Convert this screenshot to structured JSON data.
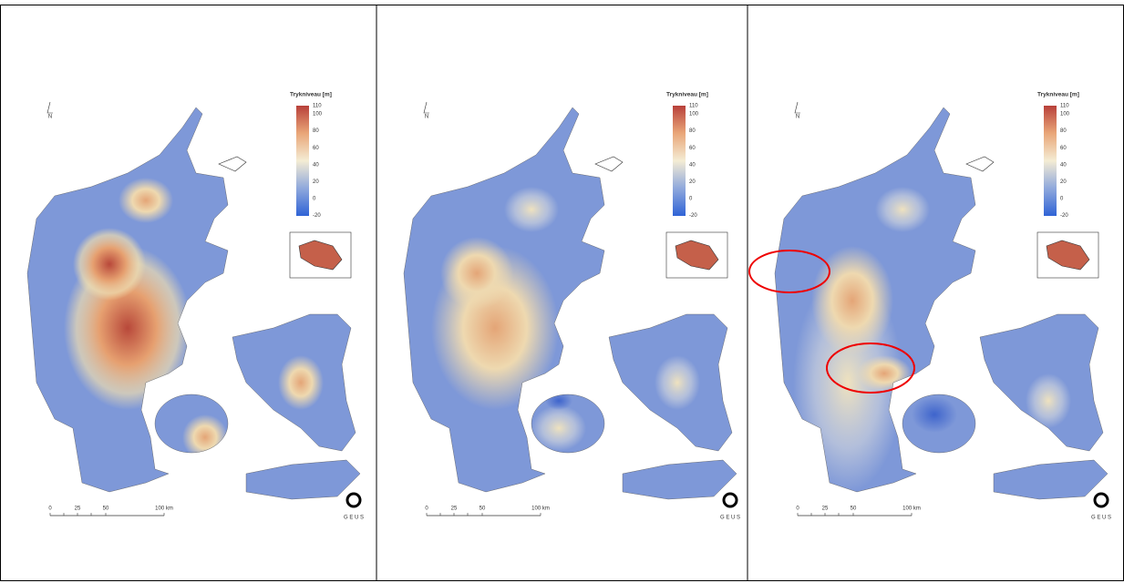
{
  "panels": [
    {
      "legend_title": "Trykniveau [m]",
      "legend_ticks": [
        110,
        100,
        80,
        60,
        40,
        20,
        0,
        -20
      ],
      "scale_labels": [
        "0",
        "25",
        "50",
        "100 km"
      ],
      "north": "N",
      "logo": "G E U S"
    },
    {
      "legend_title": "Trykniveau [m]",
      "legend_ticks": [
        110,
        100,
        80,
        60,
        40,
        20,
        0,
        -20
      ],
      "scale_labels": [
        "0",
        "25",
        "50",
        "100 km"
      ],
      "north": "N",
      "logo": "G E U S"
    },
    {
      "legend_title": "Trykniveau [m]",
      "legend_ticks": [
        110,
        100,
        80,
        60,
        40,
        20,
        0,
        -20
      ],
      "scale_labels": [
        "0",
        "25",
        "50",
        "100 km"
      ],
      "north": "N",
      "logo": "G E U S"
    }
  ]
}
